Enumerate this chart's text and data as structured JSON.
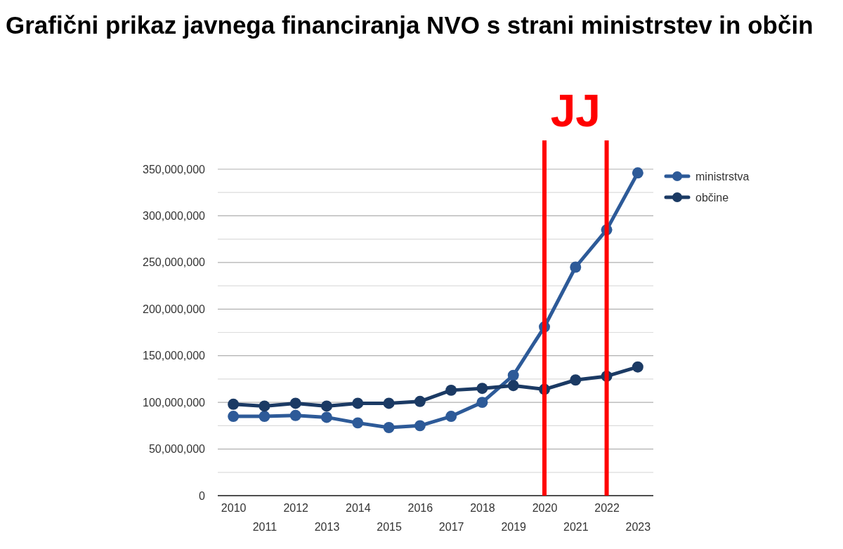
{
  "chart_data": {
    "type": "line",
    "title": "Grafični prikaz javnega financiranja NVO s strani ministrstev in občin",
    "categories": [
      "2010",
      "2011",
      "2012",
      "2013",
      "2014",
      "2015",
      "2016",
      "2017",
      "2018",
      "2019",
      "2020",
      "2021",
      "2022",
      "2023"
    ],
    "series": [
      {
        "name": "ministrstva",
        "color": "#2d5a98",
        "values": [
          85000000,
          85000000,
          86000000,
          84000000,
          78000000,
          73000000,
          75000000,
          85000000,
          100000000,
          129000000,
          181000000,
          245000000,
          285000000,
          346000000
        ]
      },
      {
        "name": "občine",
        "color": "#1b3a64",
        "values": [
          98000000,
          96000000,
          99000000,
          96000000,
          99000000,
          99000000,
          101000000,
          113000000,
          115000000,
          118000000,
          114000000,
          124000000,
          128000000,
          138000000
        ]
      }
    ],
    "ylim": [
      0,
      350000000
    ],
    "yticks": [
      {
        "value": 0,
        "label": "0"
      },
      {
        "value": 25000000,
        "label": null
      },
      {
        "value": 50000000,
        "label": "50,000,000"
      },
      {
        "value": 75000000,
        "label": null
      },
      {
        "value": 100000000,
        "label": "100,000,000"
      },
      {
        "value": 125000000,
        "label": null
      },
      {
        "value": 150000000,
        "label": "150,000,000"
      },
      {
        "value": 175000000,
        "label": null
      },
      {
        "value": 200000000,
        "label": "200,000,000"
      },
      {
        "value": 225000000,
        "label": null
      },
      {
        "value": 250000000,
        "label": "250,000,000"
      },
      {
        "value": 275000000,
        "label": null
      },
      {
        "value": 300000000,
        "label": "300,000,000"
      },
      {
        "value": 325000000,
        "label": null
      },
      {
        "value": 350000000,
        "label": "350,000,000"
      }
    ],
    "ref_lines": [
      {
        "axis": "x",
        "value": "2020",
        "color": "#ff0000"
      },
      {
        "axis": "x",
        "value": "2022",
        "color": "#ff0000"
      }
    ],
    "annotations": [
      "JJ"
    ],
    "grid": "y",
    "legend": "right",
    "marker": "circle",
    "line_style": "solid"
  }
}
